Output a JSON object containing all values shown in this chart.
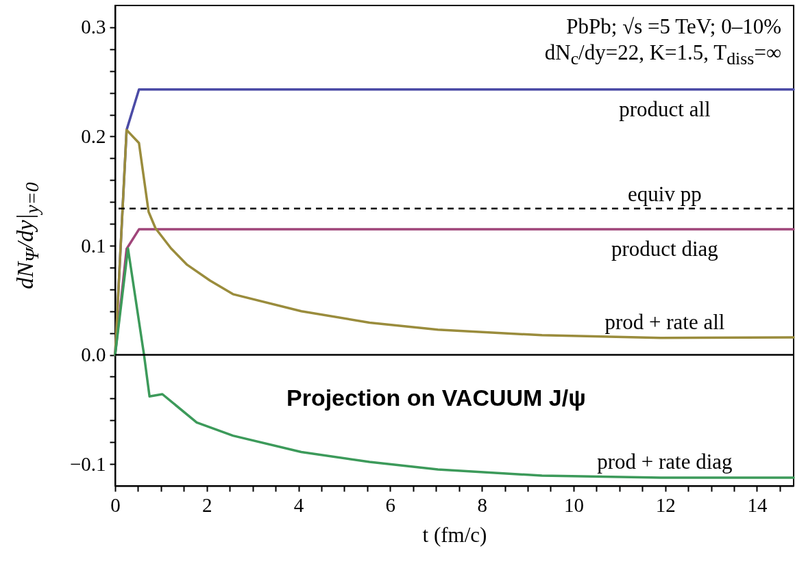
{
  "chart_data": {
    "type": "line",
    "xlabel": "t (fm/c)",
    "ylabel": "dN$_{Ψ}$/dy|$_{y=0}$",
    "xlim": [
      0,
      14.8
    ],
    "ylim": [
      -0.12,
      0.32
    ],
    "xticks": [
      0,
      {
        "value": 0.5,
        "label": null
      },
      {
        "value": 1,
        "label": null
      },
      {
        "value": 1.5,
        "label": null
      },
      2,
      {
        "value": 2.5,
        "label": null
      },
      {
        "value": 3,
        "label": null
      },
      {
        "value": 3.5,
        "label": null
      },
      4,
      {
        "value": 4.5,
        "label": null
      },
      {
        "value": 5,
        "label": null
      },
      {
        "value": 5.5,
        "label": null
      },
      6,
      {
        "value": 6.5,
        "label": null
      },
      {
        "value": 7,
        "label": null
      },
      {
        "value": 7.5,
        "label": null
      },
      8,
      {
        "value": 8.5,
        "label": null
      },
      {
        "value": 9,
        "label": null
      },
      {
        "value": 9.5,
        "label": null
      },
      10,
      {
        "value": 10.5,
        "label": null
      },
      {
        "value": 11,
        "label": null
      },
      {
        "value": 11.5,
        "label": null
      },
      12,
      {
        "value": 12.5,
        "label": null
      },
      {
        "value": 13,
        "label": null
      },
      {
        "value": 13.5,
        "label": null
      },
      14,
      {
        "value": 14.5,
        "label": null
      }
    ],
    "yticks": [
      {
        "value": -0.1,
        "label": "−0.1"
      },
      {
        "value": -0.08,
        "label": null
      },
      {
        "value": -0.06,
        "label": null
      },
      {
        "value": -0.04,
        "label": null
      },
      {
        "value": -0.02,
        "label": null
      },
      {
        "value": 0,
        "label": "0.0"
      },
      {
        "value": 0.02,
        "label": null
      },
      {
        "value": 0.04,
        "label": null
      },
      {
        "value": 0.06,
        "label": null
      },
      {
        "value": 0.08,
        "label": null
      },
      0.1,
      {
        "value": 0.12,
        "label": null
      },
      {
        "value": 0.14,
        "label": null
      },
      {
        "value": 0.16,
        "label": null
      },
      {
        "value": 0.18,
        "label": null
      },
      0.2,
      {
        "value": 0.22,
        "label": null
      },
      {
        "value": 0.24,
        "label": null
      },
      {
        "value": 0.26,
        "label": null
      },
      {
        "value": 0.28,
        "label": null
      },
      0.3
    ],
    "series": [
      {
        "name": "product all",
        "color": "#4b4ba6",
        "x": [
          0,
          0.25,
          0.52,
          14.8
        ],
        "values": [
          0,
          0.206,
          0.243,
          0.243
        ]
      },
      {
        "name": "product diag",
        "color": "#a0457a",
        "x": [
          0,
          0.25,
          0.52,
          14.8
        ],
        "values": [
          0,
          0.097,
          0.115,
          0.115
        ]
      },
      {
        "name": "prod + rate all",
        "color": "#9a8c3c",
        "x": [
          0,
          0.25,
          0.52,
          0.73,
          0.88,
          1.22,
          1.57,
          2.07,
          2.57,
          4.06,
          5.55,
          7.04,
          9.31,
          11.9,
          14.8
        ],
        "values": [
          0,
          0.206,
          0.194,
          0.131,
          0.116,
          0.0975,
          0.0825,
          0.068,
          0.0556,
          0.04,
          0.0295,
          0.023,
          0.018,
          0.0156,
          0.016
        ]
      },
      {
        "name": "prod + rate diag",
        "color": "#3c9a5a",
        "x": [
          0,
          0.28,
          0.63,
          0.75,
          1.03,
          1.78,
          2.57,
          4.06,
          5.55,
          7.04,
          9.31,
          11.9,
          14.8
        ],
        "values": [
          0,
          0.0975,
          0,
          -0.038,
          -0.036,
          -0.062,
          -0.074,
          -0.089,
          -0.098,
          -0.105,
          -0.1106,
          -0.1125,
          -0.1125
        ]
      }
    ],
    "ref_lines": [
      {
        "axis": "y",
        "value": 0.134,
        "label": "equiv pp",
        "color": "#000000",
        "line_style": "dashed"
      },
      {
        "axis": "y",
        "value": 0,
        "color": "#000000",
        "line_style": "solid"
      }
    ],
    "annotations": [
      "PbPb; √s =5 TeV; 0–10%",
      "dN$_{c}$/dy=22, K=1.5, T$_{diss}$=∞",
      "Projection on VACUUM J/ψ"
    ],
    "grid": false
  }
}
